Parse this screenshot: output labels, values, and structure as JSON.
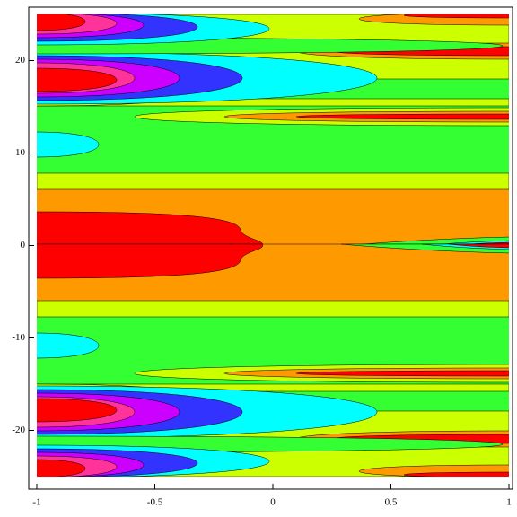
{
  "chart_data": {
    "type": "contour",
    "xlim": [
      -1,
      1
    ],
    "ylim": [
      -25,
      25
    ],
    "xticks": [
      -1,
      -0.5,
      0,
      0.5,
      1
    ],
    "yticks": [
      -20,
      -10,
      0,
      10,
      20
    ]
  }
}
